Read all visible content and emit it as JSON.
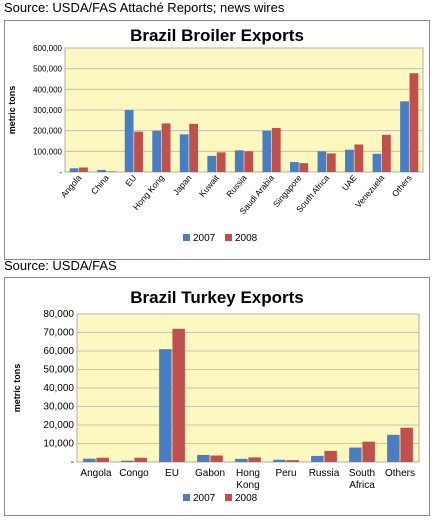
{
  "source_top": "Source: USDA/FAS Attaché Reports; news wires",
  "source_mid": "Source: USDA/FAS",
  "colors": {
    "s2007": "#4a7ec2",
    "s2008": "#c0504d",
    "plot_bg": "#fcf8c0",
    "grid": "#b5b5b5"
  },
  "chart_data": [
    {
      "type": "bar",
      "title": "Brazil Broiler Exports",
      "ylabel": "metric tons",
      "xlabel": "",
      "categories": [
        "Angola",
        "China",
        "EU",
        "Hong Kong",
        "Japan",
        "Kuwait",
        "Russia",
        "Saudi Arabia",
        "Singapore",
        "South Africa",
        "UAE",
        "Venezuela",
        "Others"
      ],
      "series": [
        {
          "name": "2007",
          "values": [
            18000,
            10000,
            300000,
            200000,
            182000,
            78000,
            105000,
            200000,
            48000,
            100000,
            108000,
            88000,
            342000
          ]
        },
        {
          "name": "2008",
          "values": [
            22000,
            3000,
            195000,
            235000,
            233000,
            95000,
            100000,
            213000,
            43000,
            90000,
            133000,
            180000,
            478000
          ]
        }
      ],
      "ylim": [
        0,
        600000
      ],
      "yticks": [
        0,
        100000,
        200000,
        300000,
        400000,
        500000,
        600000
      ],
      "ytick_labels": [
        "-",
        "100,000",
        "200,000",
        "300,000",
        "400,000",
        "500,000",
        "600,000"
      ],
      "grid": true,
      "legend": "bottom"
    },
    {
      "type": "bar",
      "title": "Brazil Turkey Exports",
      "ylabel": "metric tons",
      "xlabel": "",
      "categories": [
        "Angola",
        "Congo",
        "EU",
        "Gabon",
        "Hong Kong",
        "Peru",
        "Russia",
        "South Africa",
        "Others"
      ],
      "series": [
        {
          "name": "2007",
          "values": [
            1800,
            700,
            61000,
            3800,
            1700,
            1200,
            3300,
            7800,
            14700
          ]
        },
        {
          "name": "2008",
          "values": [
            2300,
            2300,
            72000,
            3500,
            2500,
            1000,
            6000,
            11000,
            18500
          ]
        }
      ],
      "ylim": [
        0,
        80000
      ],
      "yticks": [
        0,
        10000,
        20000,
        30000,
        40000,
        50000,
        60000,
        70000,
        80000
      ],
      "ytick_labels": [
        "-",
        "10,000",
        "20,000",
        "30,000",
        "40,000",
        "50,000",
        "60,000",
        "70,000",
        "80,000"
      ],
      "grid": true,
      "legend": "bottom"
    }
  ]
}
